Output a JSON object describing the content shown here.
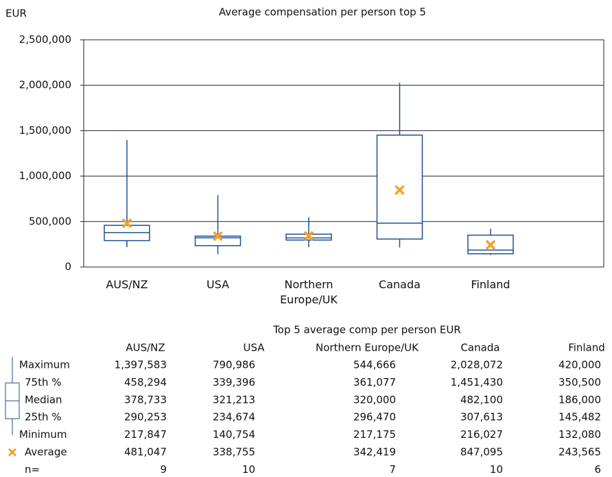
{
  "chart_data": {
    "type": "box",
    "title": "Average compensation per person top 5",
    "y_label": "EUR",
    "categories": [
      "AUS/NZ",
      "USA",
      "Northern Europe/UK",
      "Canada",
      "Finland"
    ],
    "box_color": "#1f4e96",
    "mean_color": "#f5a02a",
    "boxes": [
      {
        "min": 217847,
        "q1": 290253,
        "median": 378733,
        "q3": 458294,
        "max": 1397583,
        "mean": 481047
      },
      {
        "min": 140754,
        "q1": 234674,
        "median": 321213,
        "q3": 339396,
        "max": 790986,
        "mean": 338755
      },
      {
        "min": 217175,
        "q1": 296470,
        "median": 320000,
        "q3": 361077,
        "max": 544666,
        "mean": 342419
      },
      {
        "min": 216027,
        "q1": 307613,
        "median": 482100,
        "q3": 1451430,
        "max": 2028072,
        "mean": 847095
      },
      {
        "min": 132080,
        "q1": 145482,
        "median": 186000,
        "q3": 350500,
        "max": 420000,
        "mean": 243565
      }
    ],
    "ylim": [
      0,
      2500000
    ],
    "yticks": [
      0,
      {
        "value": 500000,
        "label": "500,000"
      },
      {
        "value": 1000000,
        "label": "1,000,000"
      },
      {
        "value": 1500000,
        "label": "1,500,000"
      },
      {
        "value": 2000000,
        "label": "2,000,000"
      },
      {
        "value": 2500000,
        "label": "2,500,000"
      }
    ],
    "grid": true
  },
  "table": {
    "title": "Top 5 average comp per person EUR",
    "columns": [
      "AUS/NZ",
      "USA",
      "Northern Europe/UK",
      "Canada",
      "Finland"
    ],
    "rows": [
      {
        "label": "Maximum",
        "cells": [
          "1,397,583",
          "790,986",
          "544,666",
          "2,028,072",
          "420,000"
        ]
      },
      {
        "label": "75th %",
        "cells": [
          "458,294",
          "339,396",
          "361,077",
          "1,451,430",
          "350,500"
        ]
      },
      {
        "label": "Median",
        "cells": [
          "378,733",
          "321,213",
          "320,000",
          "482,100",
          "186,000"
        ]
      },
      {
        "label": "25th %",
        "cells": [
          "290,253",
          "234,674",
          "296,470",
          "307,613",
          "145,482"
        ]
      },
      {
        "label": "Minimum",
        "cells": [
          "217,847",
          "140,754",
          "217,175",
          "216,027",
          "132,080"
        ]
      },
      {
        "label": "Average",
        "cells": [
          "481,047",
          "338,755",
          "342,419",
          "847,095",
          "243,565"
        ]
      },
      {
        "label": "n=",
        "cells": [
          "9",
          "10",
          "7",
          "10",
          "6"
        ]
      }
    ]
  }
}
